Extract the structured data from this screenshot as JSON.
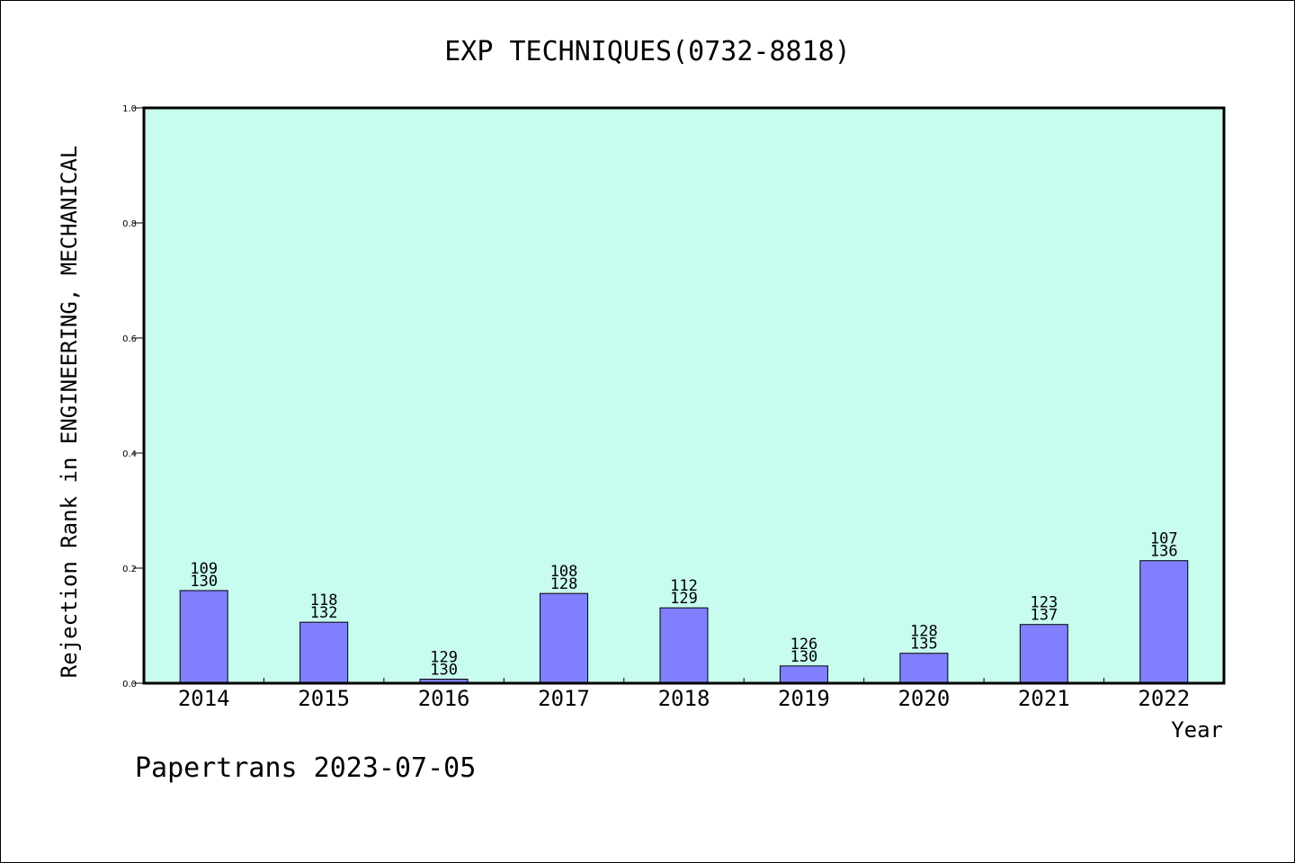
{
  "chart_data": {
    "type": "bar",
    "title": "EXP TECHNIQUES(0732-8818)",
    "xlabel": "Year",
    "ylabel": "Rejection Rank in ENGINEERING, MECHANICAL",
    "ylim": [
      0,
      1.0
    ],
    "yticks": [
      "0.0",
      "0.2",
      "0.4",
      "0.6",
      "0.8",
      "1.0"
    ],
    "grid": false,
    "categories": [
      "2014",
      "2015",
      "2016",
      "2017",
      "2018",
      "2019",
      "2020",
      "2021",
      "2022"
    ],
    "values": [
      0.161,
      0.106,
      0.007,
      0.156,
      0.131,
      0.03,
      0.052,
      0.102,
      0.213
    ],
    "labels_top": [
      "109",
      "118",
      "129",
      "108",
      "112",
      "126",
      "128",
      "123",
      "107"
    ],
    "labels_bottom": [
      "130",
      "132",
      "130",
      "128",
      "129",
      "130",
      "135",
      "137",
      "136"
    ],
    "footer": "Papertrans 2023-07-05",
    "colors": {
      "plot_background": "#c8fcee",
      "bar_fill": "#8080ff",
      "bar_stroke": "#000000",
      "axis": "#000000"
    }
  }
}
